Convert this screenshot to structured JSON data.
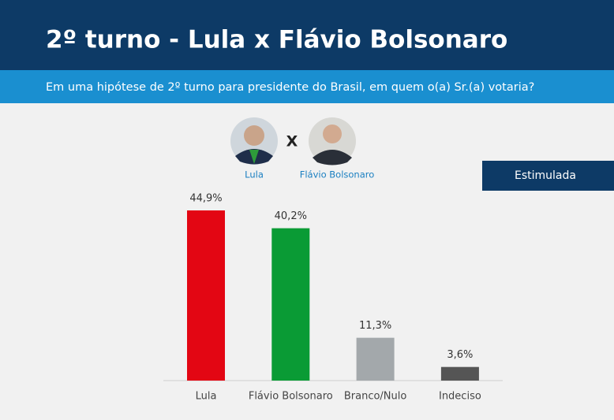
{
  "chart_data": {
    "type": "bar",
    "title": "2º turno - Lula x Flávio Bolsonaro",
    "subtitle": "Em uma hipótese de 2º turno para presidente do Brasil, em quem o(a) Sr.(a) votaria?",
    "tag": "Estimulada",
    "candidates": [
      "Lula",
      "Flávio Bolsonaro"
    ],
    "versus": "X",
    "categories": [
      "Lula",
      "Flávio Bolsonaro",
      "Branco/Nulo",
      "Indeciso"
    ],
    "values": [
      44.9,
      40.2,
      11.3,
      3.6
    ],
    "value_labels": [
      "44,9%",
      "40,2%",
      "11,3%",
      "3,6%"
    ],
    "colors": [
      "#e30613",
      "#0a9b35",
      "#a3a8ab",
      "#555555"
    ]
  }
}
